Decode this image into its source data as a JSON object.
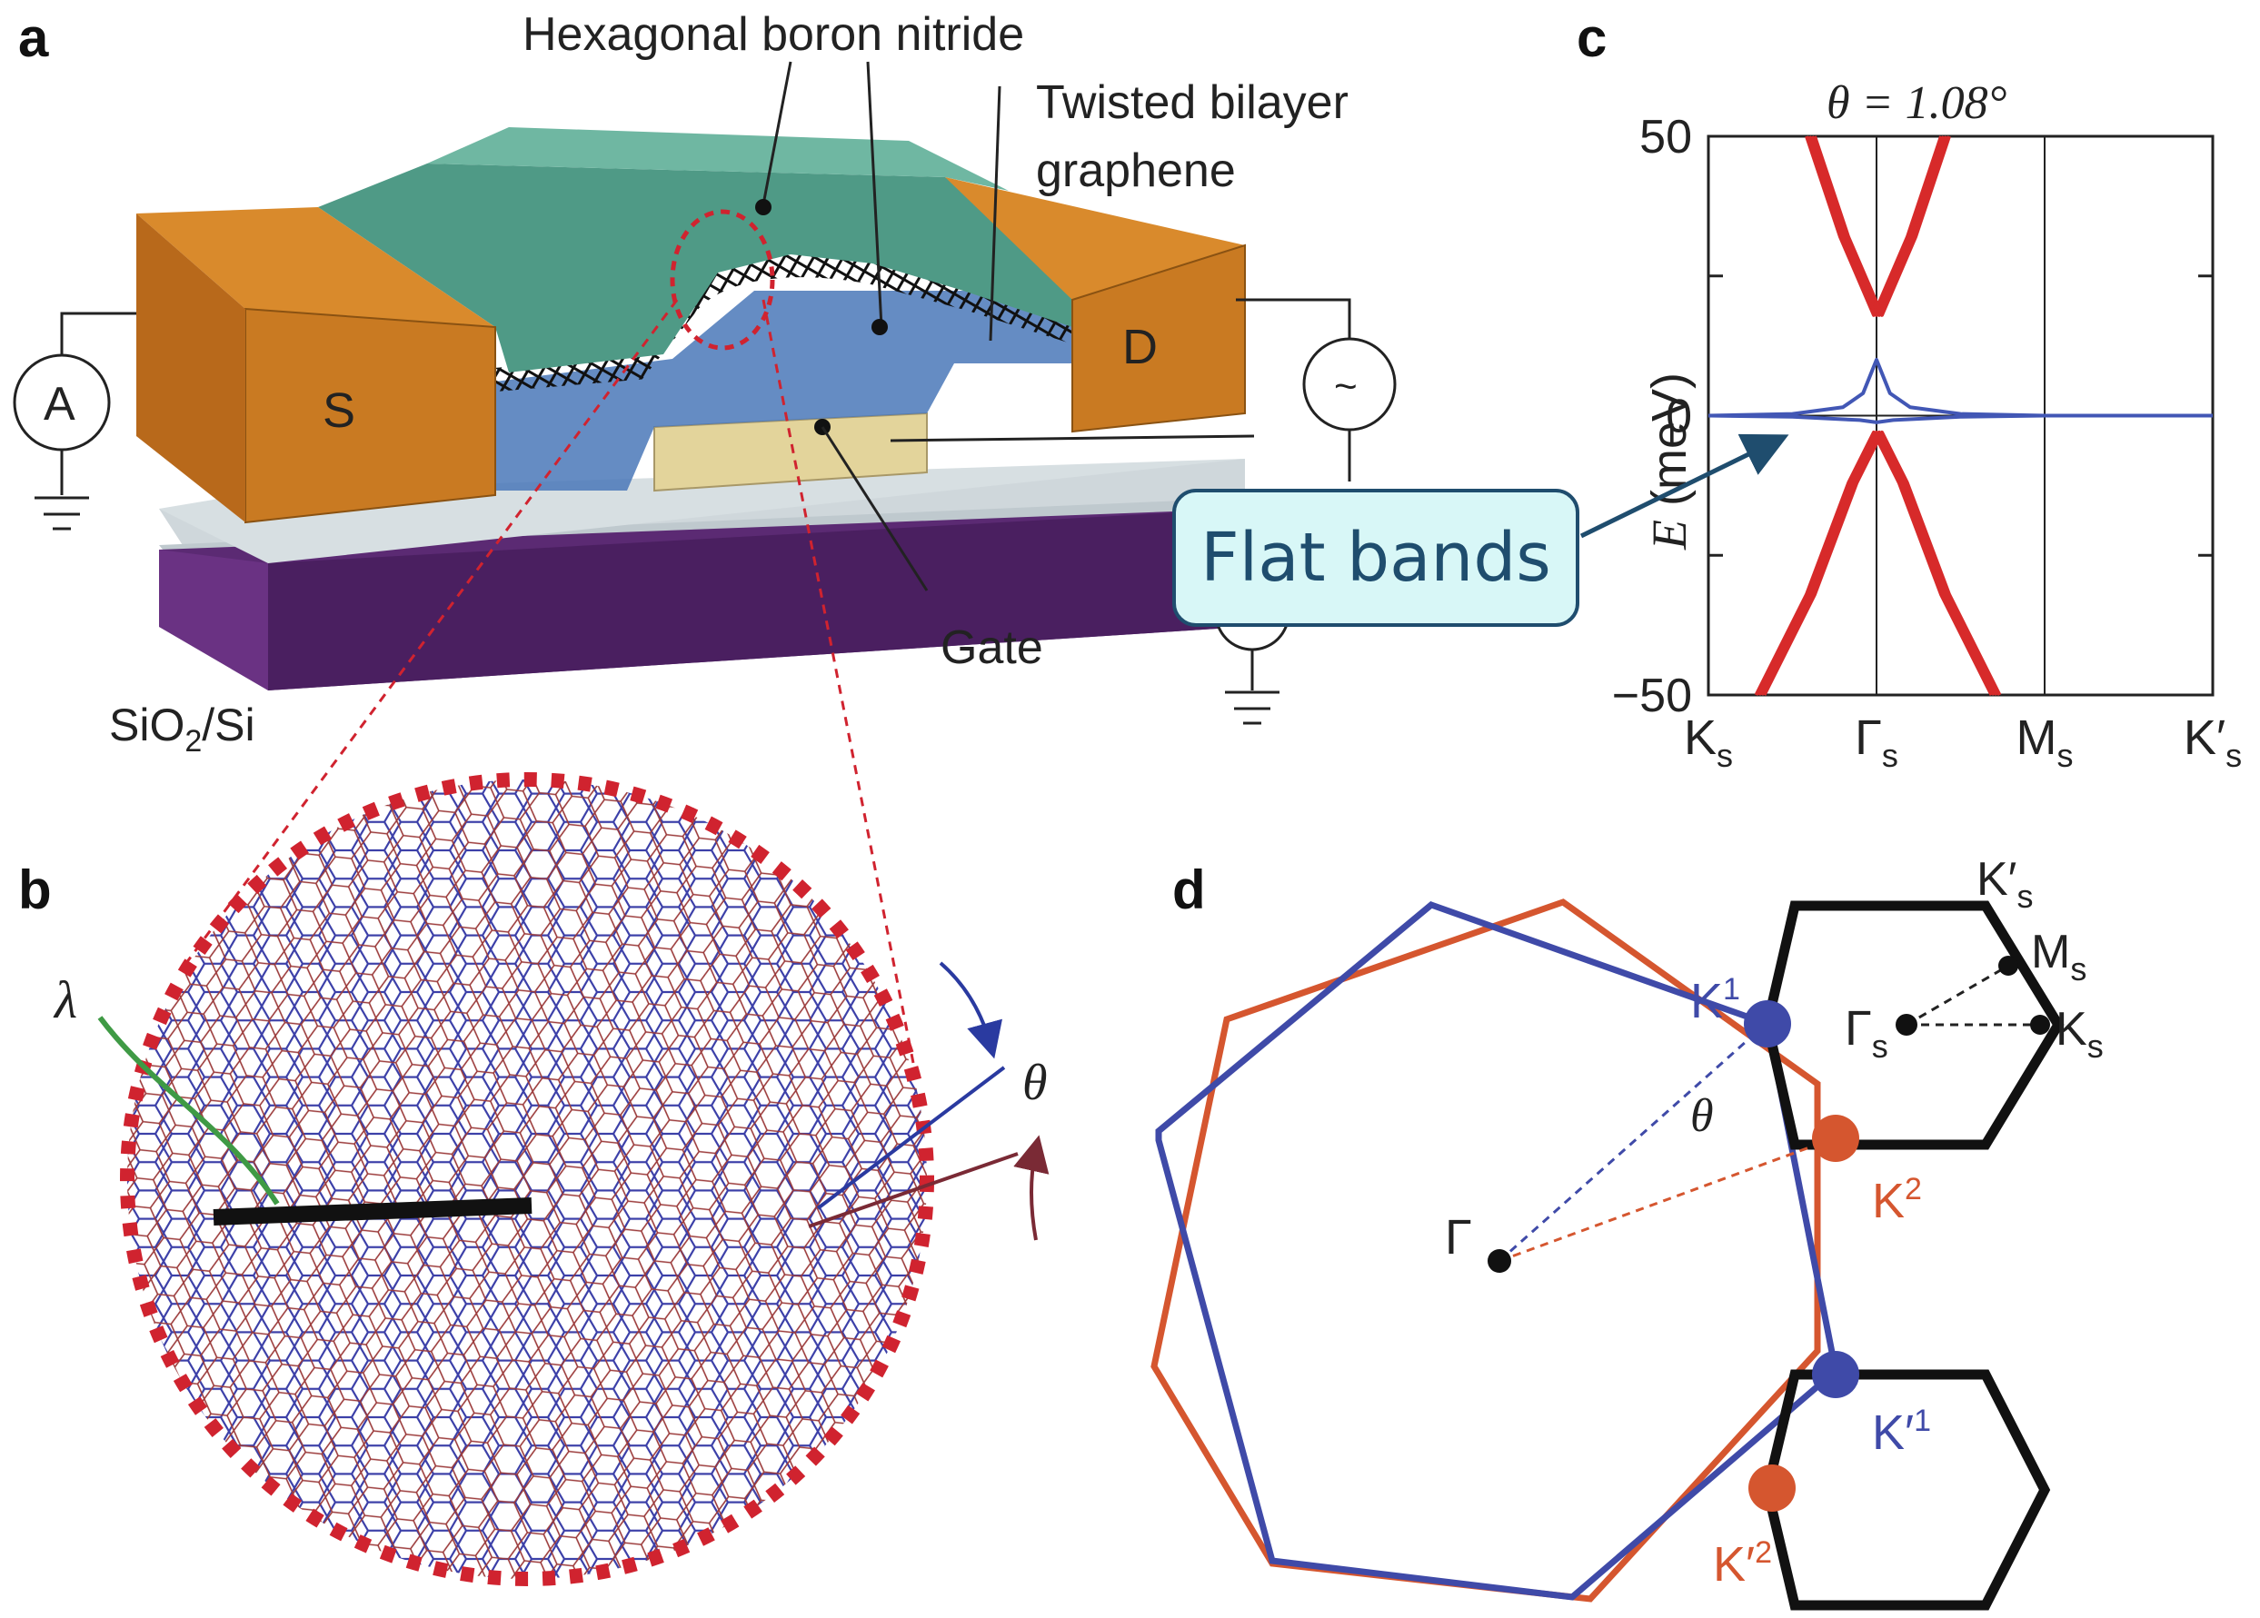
{
  "panel_a": {
    "letter": "a",
    "labels": {
      "hbn": "Hexagonal boron nitride",
      "tbg_line1": "Twisted bilayer",
      "tbg_line2": "graphene",
      "source": "S",
      "drain": "D",
      "ammeter": "A",
      "ac_source": "~",
      "gate": "Gate",
      "substrate_main": "SiO",
      "substrate_sub": "2",
      "substrate_tail": "/Si"
    },
    "colors": {
      "hbn": "#4f9a86",
      "electrode": "#d98a2c",
      "gate": "#e3d49b",
      "substrate": "#5b2a73",
      "oxide": "#cfd7db",
      "channel": "#4a78b8"
    }
  },
  "panel_b": {
    "letter": "b",
    "lambda": "λ",
    "theta": "θ",
    "colors": {
      "layer1": "#3b3fa8",
      "layer2": "#9b3a3a",
      "outline": "#d0232f",
      "lambda_line": "#3f9a45"
    }
  },
  "panel_c": {
    "letter": "c",
    "title": "θ = 1.08°",
    "ylabel_italic": "E",
    "ylabel_rest": " (meV)",
    "yticks": [
      "50",
      "0",
      "−50"
    ],
    "colors": {
      "flat": "#4257b5",
      "dispersive": "#d72a2a"
    }
  },
  "chart_data": {
    "type": "line",
    "title": "θ = 1.08°",
    "ylabel": "E (meV)",
    "ylim": [
      -50,
      50
    ],
    "k_path": [
      "Ks",
      "Γs",
      "Ms",
      "K′s"
    ],
    "series": [
      {
        "band": "flat",
        "color": "#4257b5",
        "x": [
          0,
          0.5,
          0.8,
          0.92,
          1.0,
          1.08,
          1.2,
          1.5,
          2.0,
          3.0
        ],
        "y": [
          0,
          0.3,
          1.5,
          4,
          10,
          4,
          1.5,
          0.3,
          0,
          0
        ]
      },
      {
        "band": "flat",
        "color": "#4257b5",
        "x": [
          0,
          0.5,
          0.9,
          1.0,
          1.1,
          1.5,
          2.0,
          3.0
        ],
        "y": [
          0,
          -0.2,
          -0.8,
          -1.2,
          -0.8,
          -0.2,
          0,
          0
        ]
      },
      {
        "band": "upper",
        "color": "#d72a2a",
        "x": [
          0.6,
          0.8,
          1.0,
          1.2,
          1.4
        ],
        "y": [
          50,
          32,
          18,
          32,
          50
        ]
      },
      {
        "band": "lower",
        "color": "#d72a2a",
        "x": [
          0.3,
          0.6,
          0.85,
          1.0,
          1.15,
          1.4,
          1.7
        ],
        "y": [
          -50,
          -32,
          -12,
          -3,
          -12,
          -32,
          -50
        ]
      }
    ]
  },
  "panel_d": {
    "letter": "d",
    "gamma": "Γ",
    "theta": "θ",
    "K1": "K",
    "K1_sup": "1",
    "K2": "K",
    "K2_sup": "2",
    "Kp1": "K′",
    "Kp1_sup": "1",
    "Kp2": "K′",
    "Kp2_sup": "2",
    "Ks": "K",
    "Ms": "M",
    "Gs": "Γ",
    "Kps": "K′",
    "sub_s": "s",
    "colors": {
      "layer1": "#3f4aa8",
      "layer2": "#d5562f",
      "mini_bz": "#111111"
    }
  },
  "callout": {
    "text": "Flat bands",
    "bg": "#d8f7f7",
    "border": "#1f4d6e"
  }
}
